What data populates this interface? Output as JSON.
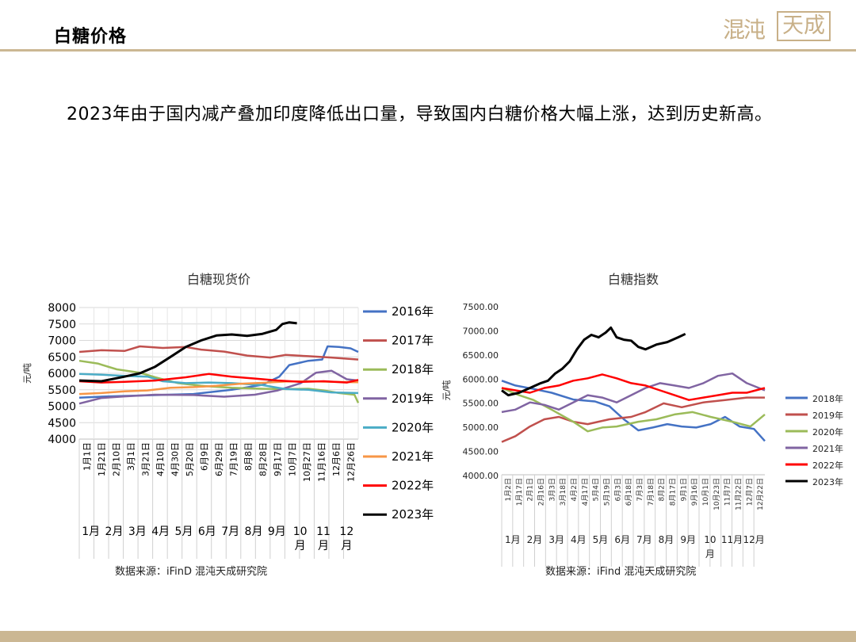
{
  "header": {
    "title": "白糖价格"
  },
  "logo": {
    "script_text": "混沌",
    "box_text": "天成"
  },
  "body_text": "2023年由于国内减产叠加印度降低出口量，导致国内白糖价格大幅上涨，达到历史新高。",
  "chart_data": [
    {
      "type": "line",
      "title": "白糖现货价",
      "ylabel": "元/吨",
      "ylim": [
        4000,
        8000
      ],
      "yticks": [
        "8000",
        "7500",
        "7000",
        "6500",
        "6000",
        "5500",
        "5000",
        "4500",
        "4000"
      ],
      "grid": true,
      "legend": "right",
      "source": "数据来源：iFinD 混沌天成研究院",
      "x_ticks": [
        "1月1日",
        "1月21日",
        "2月10日",
        "3月1日",
        "3月21日",
        "4月10日",
        "4月30日",
        "5月20日",
        "6月9日",
        "6月29日",
        "7月19日",
        "8月8日",
        "8月28日",
        "9月17日",
        "10月7日",
        "10月27日",
        "11月16日",
        "12月6日",
        "12月26日"
      ],
      "months": [
        "1月",
        "2月",
        "3月",
        "4月",
        "5月",
        "6月",
        "7月",
        "8月",
        "9月",
        "10\n月",
        "11\n月",
        "12\n月"
      ],
      "x_range": [
        1,
        365
      ],
      "series": [
        {
          "name": "2016年",
          "color": "#4472c4",
          "points": [
            [
              1,
              5260
            ],
            [
              40,
              5300
            ],
            [
              90,
              5330
            ],
            [
              150,
              5370
            ],
            [
              200,
              5500
            ],
            [
              240,
              5650
            ],
            [
              262,
              5900
            ],
            [
              275,
              6250
            ],
            [
              300,
              6380
            ],
            [
              318,
              6420
            ],
            [
              325,
              6820
            ],
            [
              340,
              6800
            ],
            [
              355,
              6760
            ],
            [
              365,
              6650
            ]
          ]
        },
        {
          "name": "2017年",
          "color": "#c0504d",
          "points": [
            [
              1,
              6650
            ],
            [
              30,
              6700
            ],
            [
              60,
              6680
            ],
            [
              80,
              6820
            ],
            [
              110,
              6770
            ],
            [
              140,
              6800
            ],
            [
              160,
              6720
            ],
            [
              190,
              6660
            ],
            [
              220,
              6540
            ],
            [
              250,
              6480
            ],
            [
              270,
              6560
            ],
            [
              300,
              6520
            ],
            [
              330,
              6480
            ],
            [
              365,
              6420
            ]
          ]
        },
        {
          "name": "2018年",
          "color": "#9bbb59",
          "points": [
            [
              1,
              6380
            ],
            [
              25,
              6300
            ],
            [
              50,
              6120
            ],
            [
              80,
              6020
            ],
            [
              100,
              5880
            ],
            [
              130,
              5700
            ],
            [
              160,
              5620
            ],
            [
              200,
              5560
            ],
            [
              240,
              5530
            ],
            [
              270,
              5520
            ],
            [
              300,
              5530
            ],
            [
              320,
              5480
            ],
            [
              340,
              5400
            ],
            [
              360,
              5350
            ],
            [
              365,
              5100
            ]
          ]
        },
        {
          "name": "2019年",
          "color": "#8064a2",
          "points": [
            [
              1,
              5080
            ],
            [
              30,
              5250
            ],
            [
              60,
              5300
            ],
            [
              100,
              5350
            ],
            [
              150,
              5340
            ],
            [
              190,
              5290
            ],
            [
              230,
              5350
            ],
            [
              260,
              5480
            ],
            [
              290,
              5700
            ],
            [
              310,
              6020
            ],
            [
              330,
              6080
            ],
            [
              350,
              5820
            ],
            [
              365,
              5780
            ]
          ]
        },
        {
          "name": "2020年",
          "color": "#4bacc6",
          "points": [
            [
              1,
              5980
            ],
            [
              30,
              5960
            ],
            [
              60,
              5920
            ],
            [
              90,
              5900
            ],
            [
              110,
              5760
            ],
            [
              140,
              5700
            ],
            [
              170,
              5720
            ],
            [
              200,
              5700
            ],
            [
              240,
              5640
            ],
            [
              270,
              5520
            ],
            [
              300,
              5500
            ],
            [
              330,
              5420
            ],
            [
              365,
              5400
            ]
          ]
        },
        {
          "name": "2021年",
          "color": "#f79646",
          "points": [
            [
              1,
              5370
            ],
            [
              30,
              5400
            ],
            [
              60,
              5450
            ],
            [
              90,
              5480
            ],
            [
              120,
              5560
            ],
            [
              150,
              5580
            ],
            [
              180,
              5620
            ],
            [
              210,
              5680
            ],
            [
              240,
              5710
            ],
            [
              270,
              5750
            ],
            [
              300,
              5760
            ],
            [
              330,
              5740
            ],
            [
              365,
              5730
            ]
          ]
        },
        {
          "name": "2022年",
          "color": "#ff0000",
          "points": [
            [
              1,
              5760
            ],
            [
              30,
              5720
            ],
            [
              60,
              5740
            ],
            [
              100,
              5780
            ],
            [
              140,
              5880
            ],
            [
              170,
              5980
            ],
            [
              200,
              5900
            ],
            [
              230,
              5840
            ],
            [
              260,
              5780
            ],
            [
              290,
              5740
            ],
            [
              320,
              5760
            ],
            [
              350,
              5720
            ],
            [
              365,
              5800
            ]
          ]
        },
        {
          "name": "2023年",
          "color": "#000000",
          "points": [
            [
              1,
              5780
            ],
            [
              30,
              5760
            ],
            [
              60,
              5900
            ],
            [
              80,
              6000
            ],
            [
              100,
              6200
            ],
            [
              120,
              6500
            ],
            [
              140,
              6800
            ],
            [
              160,
              7000
            ],
            [
              180,
              7150
            ],
            [
              200,
              7180
            ],
            [
              220,
              7140
            ],
            [
              240,
              7200
            ],
            [
              258,
              7320
            ],
            [
              266,
              7500
            ],
            [
              275,
              7550
            ],
            [
              285,
              7520
            ]
          ]
        }
      ]
    },
    {
      "type": "line",
      "title": "白糖指数",
      "ylabel": "元/吨",
      "ylim": [
        4000,
        7500
      ],
      "yticks": [
        "7500.00",
        "7000.00",
        "6500.00",
        "6000.00",
        "5500.00",
        "5000.00",
        "4500.00",
        "4000.00"
      ],
      "grid": false,
      "legend": "right",
      "source": "数据来源：iFind  混沌天成研究院",
      "x_ticks": [
        "1月2日",
        "1月17日",
        "2月1日",
        "2月16日",
        "3月3日",
        "3月18日",
        "4月2日",
        "4月17日",
        "5月4日",
        "5月19日",
        "6月3日",
        "6月18日",
        "7月3日",
        "7月18日",
        "8月2日",
        "8月17日",
        "9月1日",
        "9月16日",
        "10月1日",
        "10月23日",
        "11月7日",
        "11月22日",
        "12月7日",
        "12月22日"
      ],
      "months": [
        "1月",
        "2月",
        "3月",
        "4月",
        "5月",
        "6月",
        "7月",
        "8月",
        "9月",
        "10\n月",
        "11月",
        "12月"
      ],
      "x_range": [
        1,
        365
      ],
      "series": [
        {
          "name": "2018年",
          "color": "#4472c4",
          "points": [
            [
              1,
              5950
            ],
            [
              20,
              5850
            ],
            [
              45,
              5780
            ],
            [
              70,
              5700
            ],
            [
              100,
              5560
            ],
            [
              130,
              5520
            ],
            [
              150,
              5420
            ],
            [
              170,
              5150
            ],
            [
              190,
              4920
            ],
            [
              210,
              4980
            ],
            [
              230,
              5050
            ],
            [
              250,
              5000
            ],
            [
              270,
              4980
            ],
            [
              290,
              5050
            ],
            [
              310,
              5200
            ],
            [
              330,
              5000
            ],
            [
              350,
              4950
            ],
            [
              365,
              4700
            ]
          ]
        },
        {
          "name": "2019年",
          "color": "#c0504d",
          "points": [
            [
              1,
              4680
            ],
            [
              20,
              4800
            ],
            [
              40,
              5000
            ],
            [
              60,
              5150
            ],
            [
              80,
              5200
            ],
            [
              100,
              5100
            ],
            [
              120,
              5050
            ],
            [
              150,
              5150
            ],
            [
              180,
              5200
            ],
            [
              200,
              5300
            ],
            [
              225,
              5480
            ],
            [
              250,
              5400
            ],
            [
              280,
              5500
            ],
            [
              310,
              5550
            ],
            [
              340,
              5600
            ],
            [
              365,
              5600
            ]
          ]
        },
        {
          "name": "2020年",
          "color": "#9bbb59",
          "points": [
            [
              1,
              5800
            ],
            [
              25,
              5650
            ],
            [
              45,
              5550
            ],
            [
              70,
              5350
            ],
            [
              100,
              5100
            ],
            [
              120,
              4900
            ],
            [
              140,
              4980
            ],
            [
              160,
              5000
            ],
            [
              190,
              5100
            ],
            [
              215,
              5150
            ],
            [
              240,
              5250
            ],
            [
              265,
              5300
            ],
            [
              290,
              5200
            ],
            [
              320,
              5100
            ],
            [
              345,
              5000
            ],
            [
              365,
              5250
            ]
          ]
        },
        {
          "name": "2021年",
          "color": "#8064a2",
          "points": [
            [
              1,
              5300
            ],
            [
              20,
              5350
            ],
            [
              40,
              5500
            ],
            [
              60,
              5450
            ],
            [
              80,
              5350
            ],
            [
              100,
              5500
            ],
            [
              120,
              5650
            ],
            [
              140,
              5600
            ],
            [
              160,
              5500
            ],
            [
              180,
              5650
            ],
            [
              200,
              5800
            ],
            [
              220,
              5900
            ],
            [
              240,
              5850
            ],
            [
              260,
              5800
            ],
            [
              280,
              5900
            ],
            [
              300,
              6050
            ],
            [
              320,
              6100
            ],
            [
              340,
              5900
            ],
            [
              365,
              5750
            ]
          ]
        },
        {
          "name": "2022年",
          "color": "#ff0000",
          "points": [
            [
              1,
              5800
            ],
            [
              20,
              5750
            ],
            [
              40,
              5700
            ],
            [
              60,
              5800
            ],
            [
              80,
              5850
            ],
            [
              100,
              5950
            ],
            [
              120,
              6000
            ],
            [
              140,
              6080
            ],
            [
              160,
              6000
            ],
            [
              180,
              5900
            ],
            [
              200,
              5850
            ],
            [
              220,
              5750
            ],
            [
              240,
              5650
            ],
            [
              260,
              5550
            ],
            [
              280,
              5600
            ],
            [
              300,
              5650
            ],
            [
              320,
              5700
            ],
            [
              340,
              5700
            ],
            [
              365,
              5800
            ]
          ]
        },
        {
          "name": "2023年",
          "color": "#000000",
          "points": [
            [
              1,
              5750
            ],
            [
              10,
              5650
            ],
            [
              25,
              5700
            ],
            [
              40,
              5800
            ],
            [
              55,
              5900
            ],
            [
              65,
              5950
            ],
            [
              75,
              6100
            ],
            [
              85,
              6200
            ],
            [
              95,
              6350
            ],
            [
              105,
              6600
            ],
            [
              115,
              6800
            ],
            [
              125,
              6900
            ],
            [
              135,
              6850
            ],
            [
              145,
              6950
            ],
            [
              152,
              7050
            ],
            [
              160,
              6850
            ],
            [
              170,
              6800
            ],
            [
              180,
              6780
            ],
            [
              190,
              6650
            ],
            [
              200,
              6600
            ],
            [
              215,
              6700
            ],
            [
              230,
              6750
            ],
            [
              245,
              6850
            ],
            [
              255,
              6920
            ]
          ]
        }
      ]
    }
  ]
}
